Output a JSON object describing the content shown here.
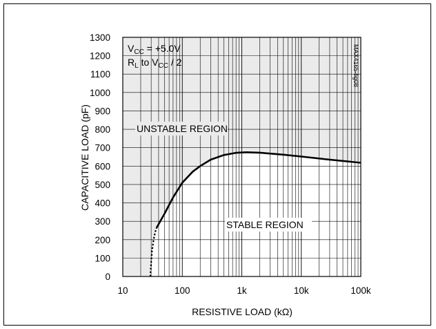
{
  "chart_data": {
    "type": "line",
    "xlabel": "RESISTIVE LOAD (kΩ)",
    "ylabel": "CAPACITIVE LOAD (pF)",
    "x_scale": "log",
    "xlim": [
      10,
      100000
    ],
    "ylim": [
      0,
      1300
    ],
    "x_ticks": [
      10,
      100,
      1000,
      10000,
      100000
    ],
    "x_tick_labels": [
      "10",
      "100",
      "1k",
      "10k",
      "100k"
    ],
    "y_ticks": [
      0,
      100,
      200,
      300,
      400,
      500,
      600,
      700,
      800,
      900,
      1000,
      1100,
      1200,
      1300
    ],
    "y_tick_labels": [
      "0",
      "100",
      "200",
      "300",
      "400",
      "500",
      "600",
      "700",
      "800",
      "900",
      "1000",
      "1100",
      "1200",
      "1300"
    ],
    "grid": true,
    "series": [
      {
        "style": "solid",
        "x": [
          37,
          50,
          70,
          100,
          150,
          200,
          300,
          500,
          800,
          1200,
          2000,
          5000,
          10000,
          30000,
          100000
        ],
        "y": [
          265,
          340,
          430,
          510,
          570,
          600,
          635,
          660,
          672,
          675,
          673,
          662,
          652,
          635,
          618
        ]
      },
      {
        "style": "dotted",
        "x": [
          29,
          30,
          31,
          33,
          35,
          37
        ],
        "y": [
          0,
          80,
          140,
          200,
          240,
          265
        ]
      }
    ],
    "annotations": {
      "conditions_line1_main": "V",
      "conditions_line1_sub": "CC",
      "conditions_line1_rest": " = +5.0V",
      "conditions_line2_main": "R",
      "conditions_line2_sub": "L",
      "conditions_line2_mid": " to V",
      "conditions_line2_sub2": "CC",
      "conditions_line2_rest": " / 2",
      "unstable_region": "UNSTABLE REGION",
      "stable_region": "STABLE REGION",
      "figure_id": "MAX4165-fig08"
    }
  }
}
